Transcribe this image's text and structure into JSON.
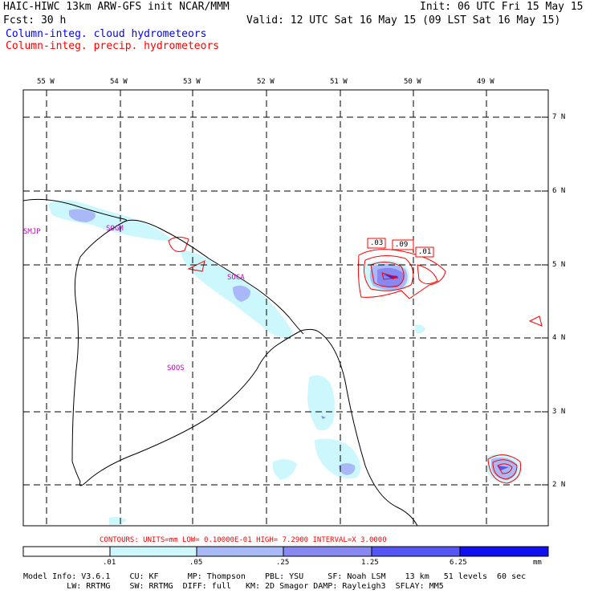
{
  "header": {
    "title_left": "HAIC-HIWC 13km ARW-GFS init   NCAR/MMM",
    "init": "Init: 06 UTC Fri 15 May 15",
    "fcst": "Fcst:   30 h",
    "valid": "Valid: 12 UTC Sat 16 May 15 (09 LST Sat 16 May 15)",
    "field_cloud": "Column-integ. cloud hydrometeors",
    "field_precip": "Column-integ. precip. hydrometeors"
  },
  "map": {
    "lon_labels": [
      "55 W",
      "54 W",
      "53 W",
      "52 W",
      "51 W",
      "50 W",
      "49 W"
    ],
    "lat_labels": [
      "7 N",
      "6 N",
      "5 N",
      "4 N",
      "3 N",
      "2 N"
    ],
    "stations": [
      "SMJP",
      "SOGM",
      "SOCA",
      "SOOS"
    ],
    "contour_labels": [
      ".03",
      ".09",
      ".01"
    ]
  },
  "contours_info": "CONTOURS:  UNITS=mm  LOW= 0.10000E-01  HIGH=  7.2900     INTERVAL=X  3.0000",
  "colorbar": {
    "ticks": [
      ".01",
      ".05",
      ".25",
      "1.25",
      "6.25"
    ],
    "unit": "mm",
    "colors": [
      "#ffffff",
      "#ccf8fd",
      "#a9b9f7",
      "#8888f3",
      "#5555f5",
      "#2d2df0",
      "#0000ff"
    ]
  },
  "footer": {
    "line1": "Model Info: V3.6.1    CU: KF      MP: Thompson    PBL: YSU     SF: Noah LSM    13 km   51 levels  60 sec",
    "line2": "         LW: RRTMG    SW: RRTMG  DIFF: full   KM: 2D Smagor DAMP: Rayleigh3  SFLAY: MM5"
  }
}
